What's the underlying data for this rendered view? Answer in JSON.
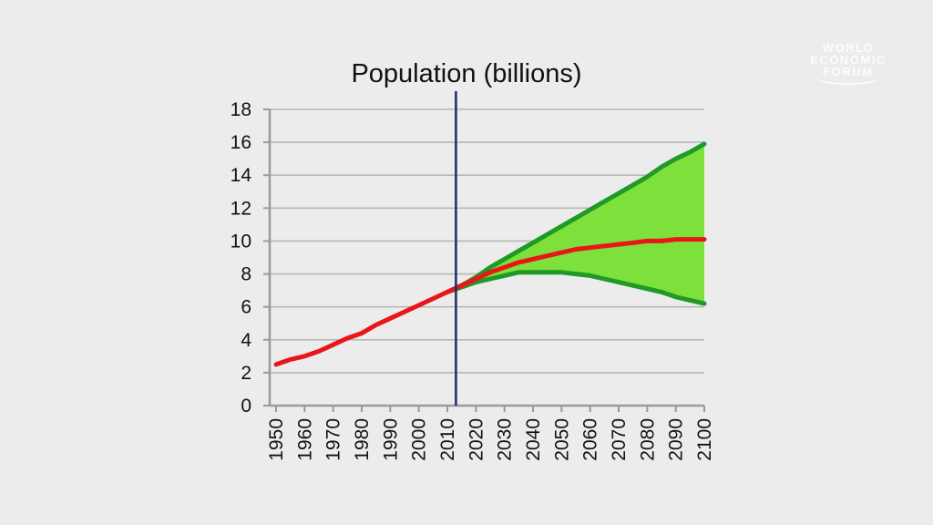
{
  "logo": {
    "lines": [
      "WORLD",
      "ECONOMIC",
      "FORUM"
    ]
  },
  "chart_data": {
    "type": "line",
    "title": "Population (billions)",
    "xlabel": "",
    "ylabel": "",
    "xlim": [
      1950,
      2100
    ],
    "ylim": [
      0,
      18
    ],
    "x_ticks": [
      "1950",
      "1960",
      "1970",
      "1980",
      "1990",
      "2000",
      "2010",
      "2020",
      "2030",
      "2040",
      "2050",
      "2060",
      "2070",
      "2080",
      "2090",
      "2100"
    ],
    "y_ticks": [
      "0",
      "2",
      "4",
      "6",
      "8",
      "10",
      "12",
      "14",
      "16",
      "18"
    ],
    "grid": true,
    "legend": "none",
    "marker_year": 2013,
    "colors": {
      "historical": "#e8161b",
      "medium": "#e8161b",
      "bounds": "#1f9a26",
      "band_fill": "#7ee03a",
      "marker": "#1a2a6c",
      "grid": "#b7b7b7",
      "axis": "#9a9a9a"
    },
    "series": [
      {
        "role": "historical",
        "x": [
          1950,
          1955,
          1960,
          1965,
          1970,
          1975,
          1980,
          1985,
          1990,
          1995,
          2000,
          2005,
          2010
        ],
        "values": [
          2.5,
          2.8,
          3.0,
          3.3,
          3.7,
          4.1,
          4.4,
          4.9,
          5.3,
          5.7,
          6.1,
          6.5,
          6.9
        ]
      },
      {
        "role": "medium",
        "x": [
          2010,
          2015,
          2020,
          2025,
          2030,
          2035,
          2040,
          2045,
          2050,
          2055,
          2060,
          2065,
          2070,
          2075,
          2080,
          2085,
          2090,
          2095,
          2100
        ],
        "values": [
          6.9,
          7.3,
          7.7,
          8.1,
          8.4,
          8.7,
          8.9,
          9.1,
          9.3,
          9.5,
          9.6,
          9.7,
          9.8,
          9.9,
          10.0,
          10.0,
          10.1,
          10.1,
          10.1
        ]
      },
      {
        "role": "high",
        "x": [
          2010,
          2015,
          2020,
          2025,
          2030,
          2035,
          2040,
          2045,
          2050,
          2055,
          2060,
          2065,
          2070,
          2075,
          2080,
          2085,
          2090,
          2095,
          2100
        ],
        "values": [
          6.9,
          7.3,
          7.8,
          8.4,
          8.9,
          9.4,
          9.9,
          10.4,
          10.9,
          11.4,
          11.9,
          12.4,
          12.9,
          13.4,
          13.9,
          14.5,
          15.0,
          15.4,
          15.9
        ]
      },
      {
        "role": "low",
        "x": [
          2010,
          2015,
          2020,
          2025,
          2030,
          2035,
          2040,
          2045,
          2050,
          2055,
          2060,
          2065,
          2070,
          2075,
          2080,
          2085,
          2090,
          2095,
          2100
        ],
        "values": [
          6.9,
          7.2,
          7.5,
          7.7,
          7.9,
          8.1,
          8.1,
          8.1,
          8.1,
          8.0,
          7.9,
          7.7,
          7.5,
          7.3,
          7.1,
          6.9,
          6.6,
          6.4,
          6.2
        ]
      }
    ]
  }
}
